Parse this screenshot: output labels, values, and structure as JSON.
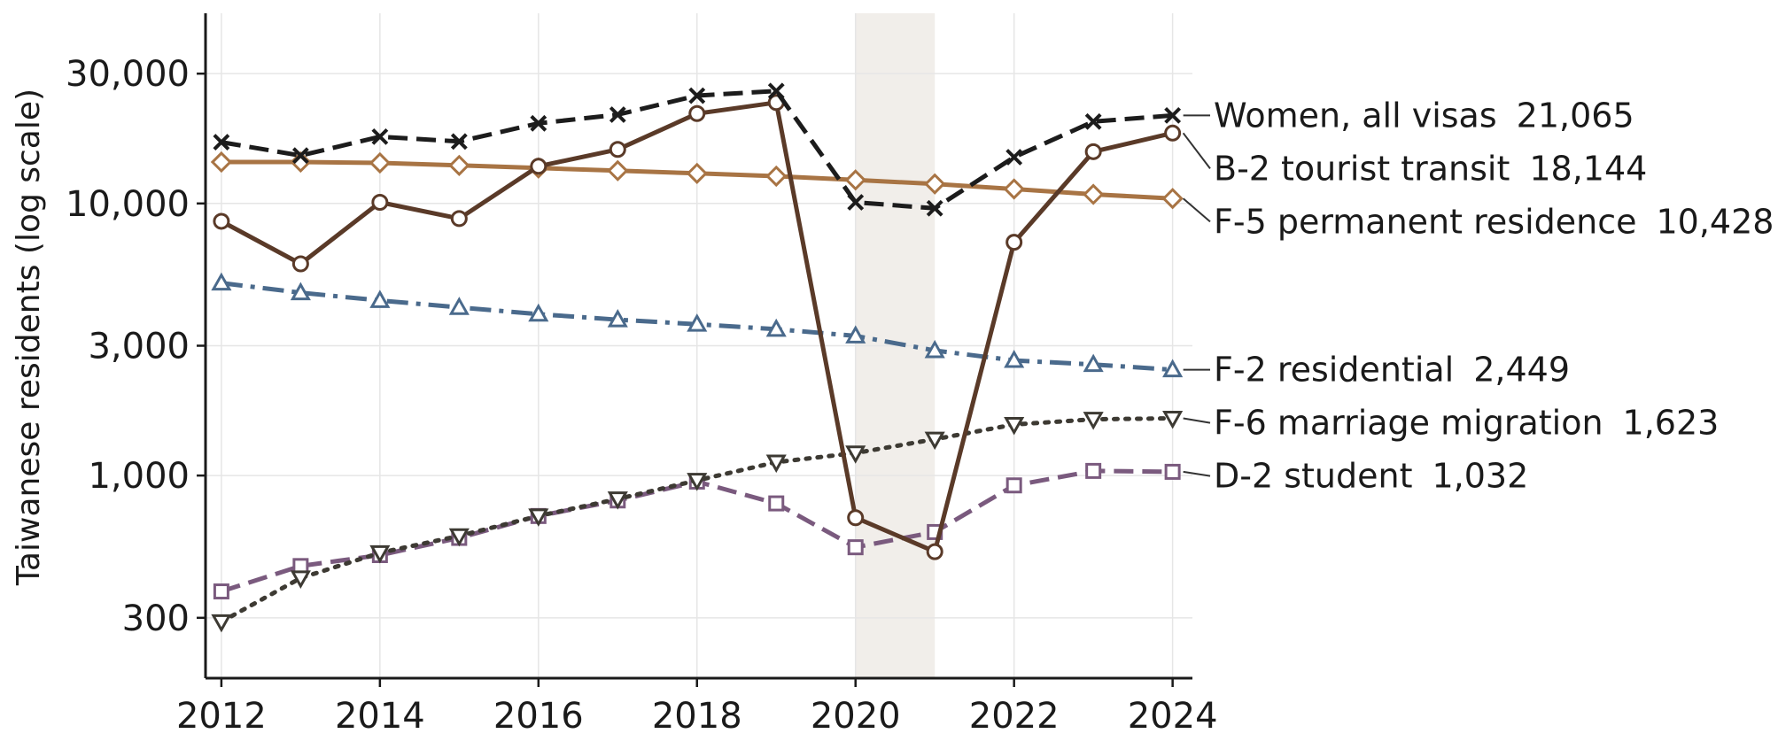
{
  "chart_data": {
    "type": "line",
    "title": "",
    "xlabel": "",
    "ylabel": "Taiwanese residents (log scale)",
    "yscale": "log",
    "xlim": [
      2011.8,
      2024.25
    ],
    "ylim": [
      180,
      50000
    ],
    "x_ticks": [
      2012,
      2014,
      2016,
      2018,
      2020,
      2022,
      2024
    ],
    "x_tick_labels": [
      "2012",
      "2014",
      "2016",
      "2018",
      "2020",
      "2022",
      "2024"
    ],
    "y_ticks": [
      300,
      1000,
      3000,
      10000,
      30000
    ],
    "y_tick_labels": [
      "300",
      "1,000",
      "3,000",
      "10,000",
      "30,000"
    ],
    "grid": true,
    "legend": "direct end labels",
    "shaded_span": {
      "x": [
        2020,
        2021
      ],
      "color": "#f1eeea"
    },
    "x": [
      2012,
      2013,
      2014,
      2015,
      2016,
      2017,
      2018,
      2019,
      2020,
      2021,
      2022,
      2023,
      2024
    ],
    "series": [
      {
        "name": "Women, all visas",
        "end_label": "21,065",
        "color": "#1c1c1c",
        "dash": "dashed",
        "marker": "x",
        "values": [
          16800,
          15000,
          17600,
          16900,
          19700,
          21200,
          24900,
          25900,
          10100,
          9600,
          14800,
          20000,
          21065
        ]
      },
      {
        "name": "B-2 tourist transit",
        "end_label": "18,144",
        "color": "#5a3a28",
        "dash": "solid",
        "marker": "circle",
        "values": [
          8600,
          6000,
          10100,
          8800,
          13700,
          15800,
          21400,
          23500,
          700,
          525,
          7200,
          15500,
          18144
        ]
      },
      {
        "name": "F-5 permanent residence",
        "end_label": "10,428",
        "color": "#a87444",
        "dash": "solid",
        "marker": "diamond",
        "values": [
          14200,
          14200,
          14100,
          13800,
          13500,
          13200,
          12900,
          12600,
          12200,
          11800,
          11300,
          10800,
          10428
        ]
      },
      {
        "name": "F-2 residential",
        "end_label": "2,449",
        "color": "#4a6a8c",
        "dash": "dashdot",
        "marker": "triangle-up",
        "values": [
          5100,
          4700,
          4400,
          4150,
          3920,
          3740,
          3600,
          3450,
          3260,
          2880,
          2650,
          2560,
          2449
        ]
      },
      {
        "name": "F-6 marriage migration",
        "end_label": "1,623",
        "color": "#3d3a33",
        "dash": "dotted",
        "marker": "triangle-down",
        "values": [
          290,
          420,
          520,
          600,
          710,
          820,
          960,
          1120,
          1210,
          1360,
          1540,
          1610,
          1623
        ]
      },
      {
        "name": "D-2 student",
        "end_label": "1,032",
        "color": "#7a5a7e",
        "dash": "dashed",
        "marker": "square",
        "values": [
          375,
          465,
          510,
          590,
          710,
          810,
          950,
          790,
          545,
          620,
          920,
          1040,
          1032
        ]
      }
    ]
  }
}
